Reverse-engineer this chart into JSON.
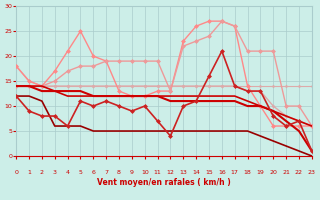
{
  "xlabel": "Vent moyen/en rafales ( km/h )",
  "bg_color": "#cceee8",
  "grid_color": "#aacccc",
  "text_color": "#cc0000",
  "xlim": [
    0,
    23
  ],
  "ylim": [
    0,
    30
  ],
  "xticks": [
    0,
    1,
    2,
    3,
    4,
    5,
    6,
    7,
    8,
    9,
    10,
    11,
    12,
    13,
    14,
    15,
    16,
    17,
    18,
    19,
    20,
    21,
    22,
    23
  ],
  "yticks": [
    0,
    5,
    10,
    15,
    20,
    25,
    30
  ],
  "lines": [
    {
      "x": [
        0,
        1,
        2,
        3,
        4,
        5,
        6,
        7,
        8,
        9,
        10,
        11,
        12,
        13,
        14,
        15,
        16,
        17,
        18,
        19,
        20,
        21,
        22,
        23
      ],
      "y": [
        18,
        15,
        14,
        17,
        21,
        25,
        20,
        19,
        13,
        12,
        12,
        13,
        13,
        23,
        26,
        27,
        27,
        26,
        14,
        10,
        6,
        6,
        6,
        6
      ],
      "color": "#ff8888",
      "lw": 1.0,
      "marker": "D",
      "ms": 2.5,
      "zorder": 3
    },
    {
      "x": [
        0,
        1,
        2,
        3,
        4,
        5,
        6,
        7,
        8,
        9,
        10,
        11,
        12,
        13,
        14,
        15,
        16,
        17,
        18,
        19,
        20,
        21,
        22,
        23
      ],
      "y": [
        14,
        14,
        14,
        15,
        17,
        18,
        18,
        19,
        19,
        19,
        19,
        19,
        13,
        22,
        23,
        24,
        27,
        26,
        21,
        21,
        21,
        10,
        10,
        6
      ],
      "color": "#ee9999",
      "lw": 1.0,
      "marker": "D",
      "ms": 2.5,
      "zorder": 3
    },
    {
      "x": [
        0,
        1,
        2,
        3,
        4,
        5,
        6,
        7,
        8,
        9,
        10,
        11,
        12,
        13,
        14,
        15,
        16,
        17,
        18,
        19,
        20,
        21,
        22,
        23
      ],
      "y": [
        18,
        15,
        14,
        14,
        14,
        14,
        14,
        14,
        14,
        14,
        14,
        14,
        14,
        14,
        14,
        14,
        14,
        14,
        13,
        13,
        10,
        8,
        7,
        6
      ],
      "color": "#ddaaaa",
      "lw": 1.0,
      "marker": "D",
      "ms": 2.0,
      "zorder": 2
    },
    {
      "x": [
        0,
        1,
        2,
        3,
        4,
        5,
        6,
        7,
        8,
        9,
        10,
        11,
        12,
        13,
        14,
        15,
        16,
        17,
        18,
        19,
        20,
        21,
        22,
        23
      ],
      "y": [
        14,
        14,
        14,
        14,
        14,
        14,
        14,
        14,
        14,
        14,
        14,
        14,
        14,
        14,
        14,
        14,
        14,
        14,
        14,
        14,
        14,
        14,
        14,
        14
      ],
      "color": "#ddaaaa",
      "lw": 0.8,
      "marker": "D",
      "ms": 1.8,
      "zorder": 2
    },
    {
      "x": [
        0,
        1,
        2,
        3,
        4,
        5,
        6,
        7,
        8,
        9,
        10,
        11,
        12,
        13,
        14,
        15,
        16,
        17,
        18,
        19,
        20,
        21,
        22,
        23
      ],
      "y": [
        12,
        9,
        8,
        8,
        6,
        11,
        10,
        11,
        10,
        9,
        10,
        7,
        4,
        10,
        11,
        16,
        21,
        14,
        13,
        13,
        8,
        6,
        7,
        1
      ],
      "color": "#cc2222",
      "lw": 1.2,
      "marker": "D",
      "ms": 2.5,
      "zorder": 4
    },
    {
      "x": [
        0,
        1,
        2,
        3,
        4,
        5,
        6,
        7,
        8,
        9,
        10,
        11,
        12,
        13,
        14,
        15,
        16,
        17,
        18,
        19,
        20,
        21,
        22,
        23
      ],
      "y": [
        14,
        14,
        13,
        13,
        13,
        13,
        12,
        12,
        12,
        12,
        12,
        12,
        11,
        11,
        11,
        11,
        11,
        11,
        10,
        10,
        9,
        7,
        5,
        1
      ],
      "color": "#cc0000",
      "lw": 1.5,
      "marker": null,
      "ms": 0,
      "zorder": 3
    },
    {
      "x": [
        0,
        1,
        2,
        3,
        4,
        5,
        6,
        7,
        8,
        9,
        10,
        11,
        12,
        13,
        14,
        15,
        16,
        17,
        18,
        19,
        20,
        21,
        22,
        23
      ],
      "y": [
        14,
        14,
        14,
        13,
        12,
        12,
        12,
        12,
        12,
        12,
        12,
        12,
        12,
        12,
        12,
        12,
        12,
        12,
        11,
        10,
        9,
        8,
        7,
        6
      ],
      "color": "#cc0000",
      "lw": 1.2,
      "marker": null,
      "ms": 0,
      "zorder": 3
    },
    {
      "x": [
        0,
        1,
        2,
        3,
        4,
        5,
        6,
        7,
        8,
        9,
        10,
        11,
        12,
        13,
        14,
        15,
        16,
        17,
        18,
        19,
        20,
        21,
        22,
        23
      ],
      "y": [
        12,
        12,
        11,
        6,
        6,
        6,
        5,
        5,
        5,
        5,
        5,
        5,
        5,
        5,
        5,
        5,
        5,
        5,
        5,
        4,
        3,
        2,
        1,
        0
      ],
      "color": "#990000",
      "lw": 1.2,
      "marker": null,
      "ms": 0,
      "zorder": 3
    }
  ],
  "wind_arrows_sw": [
    0,
    1,
    2,
    3,
    4,
    5,
    6,
    7,
    8,
    9,
    10,
    11,
    12
  ],
  "wind_arrows_ne": [
    13,
    14,
    15,
    16,
    17,
    18,
    19,
    20,
    21,
    22,
    23
  ]
}
